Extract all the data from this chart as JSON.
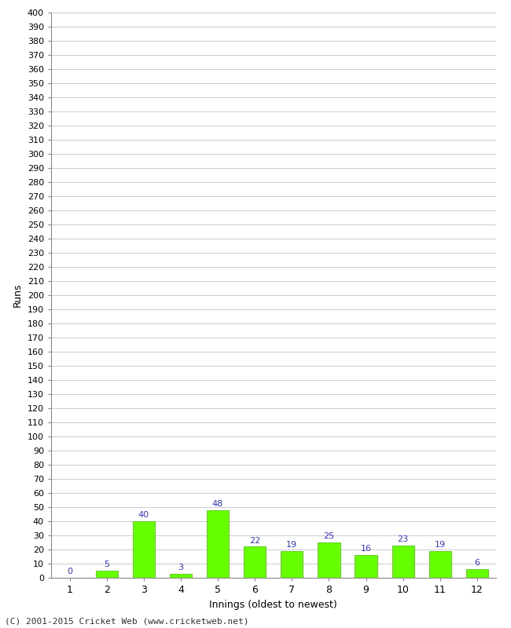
{
  "xlabel": "Innings (oldest to newest)",
  "ylabel": "Runs",
  "categories": [
    1,
    2,
    3,
    4,
    5,
    6,
    7,
    8,
    9,
    10,
    11,
    12
  ],
  "values": [
    0,
    5,
    40,
    3,
    48,
    22,
    19,
    25,
    16,
    23,
    19,
    6
  ],
  "bar_color": "#66ff00",
  "bar_edge_color": "#44bb00",
  "label_color": "#3333cc",
  "ylim": [
    0,
    400
  ],
  "background_color": "#ffffff",
  "grid_color": "#cccccc",
  "footer": "(C) 2001-2015 Cricket Web (www.cricketweb.net)"
}
